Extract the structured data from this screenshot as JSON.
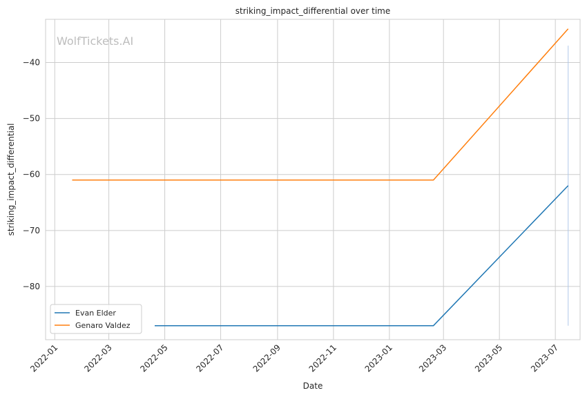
{
  "chart_data": {
    "type": "line",
    "title": "striking_impact_differential over time",
    "xlabel": "Date",
    "ylabel": "striking_impact_differential",
    "watermark": "WolfTickets.AI",
    "x_ticks": [
      "2022-01",
      "2022-03",
      "2022-05",
      "2022-07",
      "2022-09",
      "2022-11",
      "2023-01",
      "2023-03",
      "2023-05",
      "2023-07"
    ],
    "y_ticks": [
      -40,
      -50,
      -60,
      -70,
      -80
    ],
    "xlim": [
      "2021-12-22",
      "2023-07-28"
    ],
    "ylim": [
      -89.5,
      -32.3
    ],
    "grid": true,
    "legend_position": "lower-left",
    "series": [
      {
        "name": "Evan Elder",
        "color": "#1f77b4",
        "x": [
          "2022-04-20",
          "2023-02-18",
          "2023-07-15"
        ],
        "y": [
          -87,
          -87,
          -62
        ]
      },
      {
        "name": "Genaro Valdez",
        "color": "#ff7f0e",
        "x": [
          "2022-01-20",
          "2023-02-18",
          "2023-07-15"
        ],
        "y": [
          -61,
          -61,
          -34
        ]
      }
    ],
    "vline": {
      "x": "2023-07-15",
      "y": [
        -87,
        -37
      ],
      "color": "#aec7e8"
    }
  }
}
